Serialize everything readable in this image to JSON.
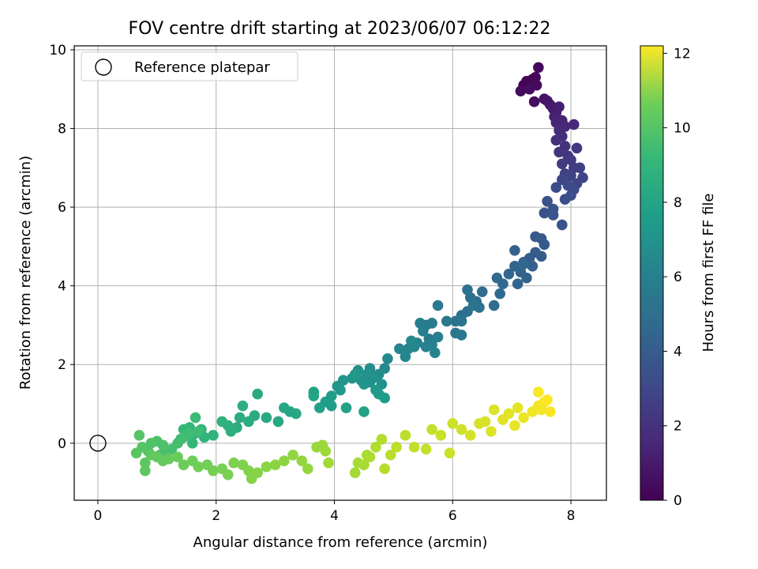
{
  "chart_data": {
    "type": "scatter",
    "title": "FOV centre drift starting at 2023/06/07 06:12:22",
    "xlabel": "Angular distance from reference (arcmin)",
    "ylabel": "Rotation from reference (arcmin)",
    "xlim": [
      -0.4,
      8.6
    ],
    "ylim": [
      -1.45,
      10.1
    ],
    "xticks": [
      0,
      2,
      4,
      6,
      8
    ],
    "yticks": [
      0,
      2,
      4,
      6,
      8,
      10
    ],
    "grid": true,
    "legend": {
      "placement": "upper-left",
      "entries": [
        "Reference platepar"
      ]
    },
    "reference_point": {
      "x": 0,
      "y": 0
    },
    "colorbar": {
      "label": "Hours from first FF file",
      "colormap": "viridis",
      "range": [
        0,
        12.2
      ],
      "ticks": [
        0,
        2,
        4,
        6,
        8,
        10,
        12
      ]
    },
    "series": [
      {
        "color_by": "hours",
        "points": [
          [
            7.2,
            9.1,
            0.0
          ],
          [
            7.25,
            9.2,
            0.05
          ],
          [
            7.3,
            9.15,
            0.1
          ],
          [
            7.35,
            9.25,
            0.15
          ],
          [
            7.4,
            9.3,
            0.2
          ],
          [
            7.45,
            9.55,
            0.25
          ],
          [
            7.42,
            9.1,
            0.3
          ],
          [
            7.15,
            8.95,
            0.35
          ],
          [
            7.3,
            9.0,
            0.4
          ],
          [
            7.38,
            8.68,
            0.45
          ],
          [
            7.55,
            8.75,
            0.6
          ],
          [
            7.6,
            8.7,
            0.7
          ],
          [
            7.65,
            8.6,
            0.8
          ],
          [
            7.7,
            8.5,
            0.9
          ],
          [
            7.75,
            8.4,
            1.0
          ],
          [
            7.8,
            8.55,
            1.05
          ],
          [
            7.72,
            8.3,
            1.1
          ],
          [
            7.85,
            8.2,
            1.2
          ],
          [
            7.75,
            8.15,
            1.3
          ],
          [
            7.9,
            8.05,
            1.35
          ],
          [
            8.05,
            8.1,
            1.45
          ],
          [
            7.8,
            7.95,
            1.5
          ],
          [
            7.85,
            7.8,
            1.6
          ],
          [
            7.75,
            7.7,
            1.65
          ],
          [
            7.9,
            7.55,
            1.75
          ],
          [
            7.8,
            7.4,
            1.85
          ],
          [
            7.95,
            7.3,
            1.9
          ],
          [
            8.1,
            7.5,
            2.0
          ],
          [
            8.0,
            7.2,
            2.05
          ],
          [
            7.85,
            7.1,
            2.15
          ],
          [
            8.05,
            7.0,
            2.2
          ],
          [
            8.15,
            7.0,
            2.3
          ],
          [
            7.9,
            6.85,
            2.35
          ],
          [
            8.0,
            6.8,
            2.45
          ],
          [
            8.2,
            6.75,
            2.5
          ],
          [
            8.1,
            6.6,
            2.6
          ],
          [
            7.85,
            6.7,
            2.65
          ],
          [
            7.95,
            6.55,
            2.75
          ],
          [
            8.05,
            6.45,
            2.8
          ],
          [
            7.75,
            6.5,
            2.85
          ],
          [
            7.9,
            6.2,
            2.95
          ],
          [
            8.0,
            6.3,
            3.0
          ],
          [
            7.6,
            6.15,
            3.05
          ],
          [
            7.55,
            5.85,
            3.1
          ],
          [
            7.7,
            5.95,
            3.15
          ],
          [
            7.85,
            5.55,
            3.2
          ],
          [
            7.7,
            5.8,
            3.25
          ],
          [
            7.4,
            5.25,
            3.35
          ],
          [
            7.5,
            5.2,
            3.4
          ],
          [
            7.55,
            5.05,
            3.45
          ],
          [
            7.4,
            4.85,
            3.5
          ],
          [
            7.5,
            4.75,
            3.55
          ],
          [
            7.3,
            4.7,
            3.6
          ],
          [
            7.2,
            4.6,
            3.65
          ],
          [
            7.35,
            4.5,
            3.7
          ],
          [
            7.05,
            4.9,
            3.75
          ],
          [
            7.15,
            4.35,
            3.8
          ],
          [
            7.25,
            4.2,
            3.85
          ],
          [
            7.05,
            4.5,
            3.9
          ],
          [
            7.1,
            4.05,
            3.95
          ],
          [
            6.95,
            4.3,
            4.0
          ],
          [
            7.2,
            4.55,
            4.05
          ],
          [
            6.85,
            4.05,
            4.1
          ],
          [
            6.75,
            4.2,
            4.15
          ],
          [
            6.8,
            3.8,
            4.2
          ],
          [
            6.7,
            3.5,
            4.25
          ],
          [
            6.5,
            3.85,
            4.3
          ],
          [
            6.4,
            3.6,
            4.35
          ],
          [
            6.3,
            3.7,
            4.4
          ],
          [
            6.25,
            3.35,
            4.45
          ],
          [
            6.15,
            3.25,
            4.5
          ],
          [
            6.45,
            3.45,
            4.55
          ],
          [
            6.25,
            3.9,
            4.6
          ],
          [
            6.05,
            3.1,
            4.65
          ],
          [
            6.35,
            3.5,
            4.7
          ],
          [
            6.15,
            3.1,
            4.75
          ],
          [
            6.05,
            2.8,
            4.8
          ],
          [
            5.9,
            3.1,
            4.85
          ],
          [
            6.15,
            2.75,
            4.9
          ],
          [
            5.75,
            3.5,
            4.95
          ],
          [
            5.55,
            3.0,
            5.0
          ],
          [
            5.65,
            3.05,
            5.05
          ],
          [
            5.6,
            2.65,
            5.1
          ],
          [
            5.75,
            2.7,
            5.15
          ],
          [
            5.45,
            3.05,
            5.2
          ],
          [
            5.5,
            2.85,
            5.25
          ],
          [
            5.65,
            2.5,
            5.3
          ],
          [
            5.55,
            2.45,
            5.35
          ],
          [
            5.4,
            2.55,
            5.4
          ],
          [
            5.25,
            2.4,
            5.45
          ],
          [
            5.7,
            2.3,
            5.5
          ],
          [
            5.1,
            2.4,
            5.55
          ],
          [
            5.35,
            2.45,
            5.6
          ],
          [
            5.2,
            2.2,
            5.65
          ],
          [
            5.3,
            2.6,
            5.7
          ],
          [
            4.9,
            2.15,
            5.75
          ],
          [
            4.85,
            1.9,
            5.8
          ],
          [
            4.75,
            1.75,
            5.85
          ],
          [
            4.6,
            1.55,
            5.9
          ],
          [
            4.7,
            1.7,
            5.95
          ],
          [
            4.6,
            1.9,
            6.0
          ],
          [
            4.4,
            1.85,
            6.05
          ],
          [
            4.45,
            1.6,
            6.1
          ],
          [
            4.8,
            1.5,
            6.15
          ],
          [
            4.65,
            1.65,
            6.2
          ],
          [
            4.55,
            1.75,
            6.25
          ],
          [
            4.5,
            1.5,
            6.3
          ],
          [
            4.3,
            1.65,
            6.35
          ],
          [
            4.15,
            1.6,
            6.4
          ],
          [
            4.05,
            1.45,
            6.45
          ],
          [
            4.1,
            1.35,
            6.5
          ],
          [
            4.35,
            1.75,
            6.55
          ],
          [
            4.7,
            1.35,
            6.6
          ],
          [
            4.75,
            1.25,
            6.65
          ],
          [
            4.85,
            1.15,
            6.7
          ],
          [
            3.95,
            1.2,
            6.75
          ],
          [
            3.85,
            1.05,
            6.8
          ],
          [
            3.95,
            0.95,
            6.85
          ],
          [
            3.75,
            0.9,
            6.9
          ],
          [
            4.2,
            0.9,
            6.95
          ],
          [
            4.5,
            0.8,
            7.0
          ],
          [
            3.65,
            1.3,
            7.05
          ],
          [
            3.65,
            1.2,
            7.1
          ],
          [
            3.25,
            0.8,
            7.15
          ],
          [
            3.15,
            0.9,
            7.2
          ],
          [
            3.35,
            0.75,
            7.25
          ],
          [
            3.05,
            0.55,
            7.3
          ],
          [
            2.7,
            1.25,
            7.35
          ],
          [
            2.85,
            0.65,
            7.4
          ],
          [
            2.65,
            0.7,
            7.45
          ],
          [
            2.55,
            0.55,
            7.5
          ],
          [
            2.4,
            0.65,
            7.55
          ],
          [
            2.35,
            0.4,
            7.6
          ],
          [
            2.45,
            0.95,
            7.65
          ],
          [
            2.25,
            0.3,
            7.7
          ],
          [
            2.2,
            0.45,
            7.75
          ],
          [
            2.1,
            0.55,
            7.8
          ],
          [
            1.95,
            0.2,
            7.85
          ],
          [
            1.8,
            0.15,
            7.9
          ],
          [
            1.75,
            0.35,
            7.95
          ],
          [
            1.65,
            0.25,
            8.0
          ],
          [
            1.55,
            0.4,
            8.05
          ],
          [
            1.6,
            0.0,
            8.1
          ],
          [
            1.45,
            0.35,
            8.15
          ],
          [
            1.4,
            0.1,
            8.2
          ],
          [
            1.5,
            0.2,
            8.25
          ],
          [
            1.65,
            0.65,
            8.3
          ],
          [
            1.7,
            0.3,
            8.35
          ],
          [
            1.55,
            0.25,
            8.4
          ],
          [
            1.45,
            0.15,
            8.45
          ],
          [
            1.35,
            0.0,
            8.5
          ],
          [
            1.25,
            -0.15,
            8.55
          ],
          [
            1.15,
            -0.2,
            8.6
          ],
          [
            1.05,
            -0.3,
            8.65
          ],
          [
            1.1,
            -0.05,
            8.7
          ],
          [
            1.0,
            0.05,
            8.75
          ],
          [
            0.9,
            0.0,
            8.8
          ],
          [
            0.85,
            -0.2,
            8.85
          ],
          [
            0.7,
            0.2,
            8.9
          ],
          [
            0.75,
            -0.1,
            8.95
          ],
          [
            0.65,
            -0.25,
            9.0
          ],
          [
            0.8,
            -0.5,
            9.05
          ],
          [
            0.8,
            -0.7,
            9.1
          ],
          [
            0.9,
            -0.3,
            9.15
          ],
          [
            1.0,
            -0.35,
            9.2
          ],
          [
            1.1,
            -0.45,
            9.25
          ],
          [
            1.2,
            -0.4,
            9.3
          ],
          [
            1.35,
            -0.35,
            9.35
          ],
          [
            1.45,
            -0.55,
            9.4
          ],
          [
            1.6,
            -0.45,
            9.45
          ],
          [
            1.7,
            -0.6,
            9.5
          ],
          [
            1.85,
            -0.55,
            9.55
          ],
          [
            1.95,
            -0.7,
            9.6
          ],
          [
            2.1,
            -0.65,
            9.65
          ],
          [
            2.2,
            -0.8,
            9.7
          ],
          [
            2.3,
            -0.5,
            9.75
          ],
          [
            2.45,
            -0.55,
            9.8
          ],
          [
            2.55,
            -0.7,
            9.85
          ],
          [
            2.6,
            -0.9,
            9.9
          ],
          [
            2.7,
            -0.75,
            9.95
          ],
          [
            2.85,
            -0.6,
            10.0
          ],
          [
            3.0,
            -0.55,
            10.05
          ],
          [
            3.15,
            -0.45,
            10.1
          ],
          [
            3.3,
            -0.3,
            10.15
          ],
          [
            3.45,
            -0.45,
            10.2
          ],
          [
            3.55,
            -0.65,
            10.25
          ],
          [
            3.7,
            -0.1,
            10.3
          ],
          [
            3.8,
            -0.05,
            10.35
          ],
          [
            3.85,
            -0.2,
            10.4
          ],
          [
            3.9,
            -0.5,
            10.45
          ],
          [
            4.35,
            -0.75,
            10.5
          ],
          [
            4.4,
            -0.5,
            10.55
          ],
          [
            4.5,
            -0.55,
            10.6
          ],
          [
            4.55,
            -0.3,
            10.65
          ],
          [
            4.6,
            -0.35,
            10.7
          ],
          [
            4.7,
            -0.1,
            10.75
          ],
          [
            4.8,
            0.1,
            10.8
          ],
          [
            4.85,
            -0.65,
            10.85
          ],
          [
            4.95,
            -0.3,
            10.9
          ],
          [
            5.05,
            -0.1,
            10.95
          ],
          [
            5.2,
            0.2,
            11.0
          ],
          [
            5.35,
            -0.1,
            11.05
          ],
          [
            5.55,
            -0.15,
            11.1
          ],
          [
            5.65,
            0.35,
            11.15
          ],
          [
            5.8,
            0.2,
            11.2
          ],
          [
            5.95,
            -0.25,
            11.25
          ],
          [
            6.0,
            0.5,
            11.3
          ],
          [
            6.15,
            0.35,
            11.35
          ],
          [
            6.3,
            0.2,
            11.4
          ],
          [
            6.45,
            0.5,
            11.45
          ],
          [
            6.55,
            0.55,
            11.5
          ],
          [
            6.65,
            0.3,
            11.55
          ],
          [
            6.7,
            0.85,
            11.6
          ],
          [
            6.85,
            0.6,
            11.65
          ],
          [
            6.95,
            0.75,
            11.7
          ],
          [
            7.1,
            0.9,
            11.75
          ],
          [
            7.05,
            0.45,
            11.8
          ],
          [
            7.2,
            0.65,
            11.85
          ],
          [
            7.35,
            0.8,
            11.9
          ],
          [
            7.45,
            0.95,
            11.95
          ],
          [
            7.5,
            0.85,
            12.0
          ],
          [
            7.55,
            1.05,
            12.05
          ],
          [
            7.65,
            0.8,
            12.1
          ],
          [
            7.45,
            1.3,
            12.15
          ],
          [
            7.6,
            1.1,
            12.2
          ]
        ]
      }
    ]
  }
}
